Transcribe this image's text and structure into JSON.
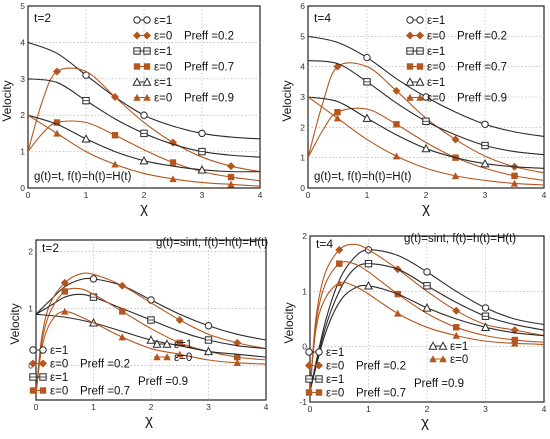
{
  "colors": {
    "epsilon1": "#2a2a2a",
    "epsilon0": "#b4561e",
    "frame": "#222222",
    "grid": "#a9a9a9"
  },
  "legend_labels": {
    "eps1": "ε=1",
    "eps0": "ε=0",
    "pr02": "Preff =0.2",
    "pr07": "Preff =0.7",
    "pr09": "Preff =0.9"
  },
  "marker_icons": {
    "pr02": [
      "open-circle-marker",
      "filled-diamond-marker"
    ],
    "pr07": [
      "open-square-marker",
      "filled-square-marker"
    ],
    "pr09": [
      "open-triangle-marker",
      "filled-triangle-marker"
    ]
  },
  "chart_data": [
    {
      "type": "line",
      "panel": "top-left",
      "time_label": "t=2",
      "condition": "g(t)=t, f(t)=h(t)=H(t)",
      "xlabel": "χ",
      "ylabel": "Velocity",
      "xlim": [
        0,
        4
      ],
      "ylim": [
        0,
        5
      ],
      "xticks": [
        0,
        1,
        2,
        3,
        4
      ],
      "yticks": [
        0,
        1,
        2,
        3,
        4,
        5
      ],
      "grid": true,
      "legend_position": "top-right",
      "series": [
        {
          "eps": 1,
          "pr": 0.2,
          "x": [
            0,
            0.5,
            1,
            1.5,
            2,
            2.5,
            3,
            3.5,
            4
          ],
          "y": [
            4.0,
            3.7,
            3.1,
            2.5,
            2.0,
            1.7,
            1.5,
            1.4,
            1.35
          ]
        },
        {
          "eps": 0,
          "pr": 0.2,
          "x": [
            0,
            0.25,
            0.5,
            1,
            1.5,
            2,
            2.5,
            3,
            3.5,
            4
          ],
          "y": [
            1.0,
            2.4,
            3.2,
            3.2,
            2.5,
            1.8,
            1.25,
            0.85,
            0.6,
            0.45
          ]
        },
        {
          "eps": 1,
          "pr": 0.7,
          "x": [
            0,
            0.5,
            1,
            1.5,
            2,
            2.5,
            3,
            3.5,
            4
          ],
          "y": [
            3.0,
            2.9,
            2.4,
            1.9,
            1.5,
            1.2,
            1.0,
            0.9,
            0.85
          ]
        },
        {
          "eps": 0,
          "pr": 0.7,
          "x": [
            0,
            0.25,
            0.5,
            1,
            1.5,
            2,
            2.5,
            3,
            3.5,
            4
          ],
          "y": [
            1.0,
            1.5,
            1.8,
            1.8,
            1.45,
            1.05,
            0.7,
            0.45,
            0.3,
            0.2
          ]
        },
        {
          "eps": 1,
          "pr": 0.9,
          "x": [
            0,
            0.5,
            1,
            1.5,
            2,
            2.5,
            3,
            3.5,
            4
          ],
          "y": [
            2.0,
            1.75,
            1.35,
            1.0,
            0.75,
            0.6,
            0.5,
            0.45,
            0.45
          ]
        },
        {
          "eps": 0,
          "pr": 0.9,
          "x": [
            0,
            0.5,
            1,
            1.5,
            2,
            2.5,
            3,
            3.5,
            4
          ],
          "y": [
            2.0,
            1.5,
            1.0,
            0.65,
            0.4,
            0.25,
            0.15,
            0.1,
            0.05
          ]
        }
      ]
    },
    {
      "type": "line",
      "panel": "top-right",
      "time_label": "t=4",
      "condition": "g(t)=t, f(t)=h(t)=H(t)",
      "xlabel": "χ",
      "ylabel": "Velocity",
      "xlim": [
        0,
        4
      ],
      "ylim": [
        0,
        6
      ],
      "xticks": [
        0,
        1,
        2,
        3,
        4
      ],
      "yticks": [
        0,
        1,
        2,
        3,
        4,
        5,
        6
      ],
      "grid": true,
      "legend_position": "top-right",
      "series": [
        {
          "eps": 1,
          "pr": 0.2,
          "x": [
            0,
            0.5,
            1,
            1.5,
            2,
            2.5,
            3,
            3.5,
            4
          ],
          "y": [
            5.0,
            4.8,
            4.3,
            3.6,
            3.0,
            2.5,
            2.1,
            1.85,
            1.7
          ]
        },
        {
          "eps": 0,
          "pr": 0.2,
          "x": [
            0,
            0.25,
            0.5,
            1,
            1.5,
            2,
            2.5,
            3,
            3.5,
            4
          ],
          "y": [
            1.0,
            2.8,
            4.0,
            4.0,
            3.2,
            2.3,
            1.6,
            1.05,
            0.7,
            0.5
          ]
        },
        {
          "eps": 1,
          "pr": 0.7,
          "x": [
            0,
            0.5,
            1,
            1.5,
            2,
            2.5,
            3,
            3.5,
            4
          ],
          "y": [
            4.2,
            4.1,
            3.5,
            2.8,
            2.2,
            1.75,
            1.4,
            1.2,
            1.1
          ]
        },
        {
          "eps": 0,
          "pr": 0.7,
          "x": [
            0,
            0.25,
            0.5,
            1,
            1.5,
            2,
            2.5,
            3,
            3.5,
            4
          ],
          "y": [
            1.0,
            1.9,
            2.5,
            2.6,
            2.1,
            1.5,
            1.0,
            0.65,
            0.4,
            0.25
          ]
        },
        {
          "eps": 1,
          "pr": 0.9,
          "x": [
            0,
            0.5,
            1,
            1.5,
            2,
            2.5,
            3,
            3.5,
            4
          ],
          "y": [
            3.0,
            2.85,
            2.3,
            1.75,
            1.3,
            1.0,
            0.8,
            0.7,
            0.65
          ]
        },
        {
          "eps": 0,
          "pr": 0.9,
          "x": [
            0,
            0.5,
            1,
            1.5,
            2,
            2.5,
            3,
            3.5,
            4
          ],
          "y": [
            3.0,
            2.3,
            1.6,
            1.05,
            0.65,
            0.4,
            0.25,
            0.15,
            0.1
          ]
        }
      ]
    },
    {
      "type": "line",
      "panel": "bottom-left",
      "time_label": "t=2",
      "condition": "g(t)=sint, f(t)=h(t)=H(t)",
      "xlabel": "χ",
      "ylabel": "Velocity",
      "xlim": [
        0,
        4
      ],
      "ylim": [
        -0.6,
        2.2
      ],
      "xticks": [
        0,
        1,
        2,
        3,
        4
      ],
      "yticks": [
        0,
        1,
        2
      ],
      "grid": true,
      "legend_position": "bottom-left",
      "series": [
        {
          "eps": 1,
          "pr": 0.2,
          "x": [
            0,
            0.25,
            0.5,
            0.75,
            1,
            1.5,
            2,
            2.5,
            3,
            3.5,
            4
          ],
          "y": [
            0.9,
            1.15,
            1.38,
            1.5,
            1.52,
            1.4,
            1.15,
            0.9,
            0.7,
            0.55,
            0.45
          ]
        },
        {
          "eps": 0,
          "pr": 0.2,
          "x": [
            0,
            0.1,
            0.25,
            0.5,
            0.75,
            1,
            1.5,
            2,
            2.5,
            3,
            3.5,
            4
          ],
          "y": [
            -0.5,
            0.5,
            1.1,
            1.45,
            1.6,
            1.6,
            1.4,
            1.1,
            0.8,
            0.55,
            0.4,
            0.3
          ]
        },
        {
          "eps": 1,
          "pr": 0.7,
          "x": [
            0,
            0.25,
            0.5,
            0.75,
            1,
            1.5,
            2,
            2.5,
            3,
            3.5,
            4
          ],
          "y": [
            0.9,
            1.05,
            1.2,
            1.25,
            1.2,
            1.0,
            0.8,
            0.6,
            0.45,
            0.35,
            0.3
          ]
        },
        {
          "eps": 0,
          "pr": 0.7,
          "x": [
            0,
            0.1,
            0.25,
            0.5,
            0.75,
            1,
            1.5,
            2,
            2.5,
            3,
            3.5,
            4
          ],
          "y": [
            -0.5,
            0.4,
            0.95,
            1.3,
            1.35,
            1.25,
            0.95,
            0.65,
            0.4,
            0.25,
            0.15,
            0.1
          ]
        },
        {
          "eps": 1,
          "pr": 0.9,
          "x": [
            0,
            0.5,
            1,
            1.5,
            2,
            2.5,
            3,
            3.5,
            4
          ],
          "y": [
            0.9,
            0.85,
            0.75,
            0.6,
            0.45,
            0.35,
            0.25,
            0.2,
            0.15
          ]
        },
        {
          "eps": 0,
          "pr": 0.9,
          "x": [
            0,
            0.1,
            0.25,
            0.5,
            1,
            1.5,
            2,
            2.5,
            3,
            3.5,
            4
          ],
          "y": [
            -0.5,
            0.3,
            0.75,
            0.95,
            0.75,
            0.5,
            0.3,
            0.2,
            0.1,
            0.05,
            0.03
          ]
        }
      ]
    },
    {
      "type": "line",
      "panel": "bottom-right",
      "time_label": "t=4",
      "condition": "g(t)=sint, f(t)=h(t)=H(t)",
      "xlabel": "χ",
      "ylabel": "Velocity",
      "xlim": [
        0,
        4
      ],
      "ylim": [
        -1,
        2
      ],
      "xticks": [
        0,
        1,
        2,
        3,
        4
      ],
      "yticks": [
        -1,
        0,
        1,
        2
      ],
      "grid": true,
      "legend_position": "bottom-left",
      "series": [
        {
          "eps": 1,
          "pr": 0.2,
          "x": [
            0,
            0.25,
            0.5,
            0.75,
            1,
            1.5,
            2,
            2.5,
            3,
            3.5,
            4
          ],
          "y": [
            -0.8,
            0.4,
            1.2,
            1.6,
            1.75,
            1.65,
            1.35,
            1.0,
            0.7,
            0.5,
            0.4
          ]
        },
        {
          "eps": 0,
          "pr": 0.2,
          "x": [
            0,
            0.1,
            0.25,
            0.5,
            0.75,
            1,
            1.5,
            2,
            2.5,
            3,
            3.5,
            4
          ],
          "y": [
            -0.8,
            0.5,
            1.3,
            1.75,
            1.85,
            1.75,
            1.4,
            1.0,
            0.65,
            0.4,
            0.3,
            0.2
          ]
        },
        {
          "eps": 1,
          "pr": 0.7,
          "x": [
            0,
            0.25,
            0.5,
            0.75,
            1,
            1.5,
            2,
            2.5,
            3,
            3.5,
            4
          ],
          "y": [
            -0.8,
            0.3,
            1.0,
            1.4,
            1.5,
            1.4,
            1.1,
            0.8,
            0.55,
            0.4,
            0.3
          ]
        },
        {
          "eps": 0,
          "pr": 0.7,
          "x": [
            0,
            0.1,
            0.25,
            0.5,
            0.75,
            1,
            1.5,
            2,
            2.5,
            3,
            3.5,
            4
          ],
          "y": [
            -0.8,
            0.4,
            1.1,
            1.5,
            1.5,
            1.35,
            0.95,
            0.6,
            0.35,
            0.2,
            0.12,
            0.08
          ]
        },
        {
          "eps": 1,
          "pr": 0.9,
          "x": [
            0,
            0.25,
            0.5,
            0.75,
            1,
            1.5,
            2,
            2.5,
            3,
            3.5,
            4
          ],
          "y": [
            -0.8,
            0.2,
            0.8,
            1.05,
            1.1,
            0.95,
            0.7,
            0.5,
            0.35,
            0.25,
            0.2
          ]
        },
        {
          "eps": 0,
          "pr": 0.9,
          "x": [
            0,
            0.1,
            0.25,
            0.5,
            0.75,
            1,
            1.5,
            2,
            2.5,
            3,
            3.5,
            4
          ],
          "y": [
            -0.8,
            0.3,
            0.85,
            1.15,
            1.1,
            0.95,
            0.6,
            0.35,
            0.2,
            0.1,
            0.06,
            0.04
          ]
        }
      ]
    }
  ]
}
